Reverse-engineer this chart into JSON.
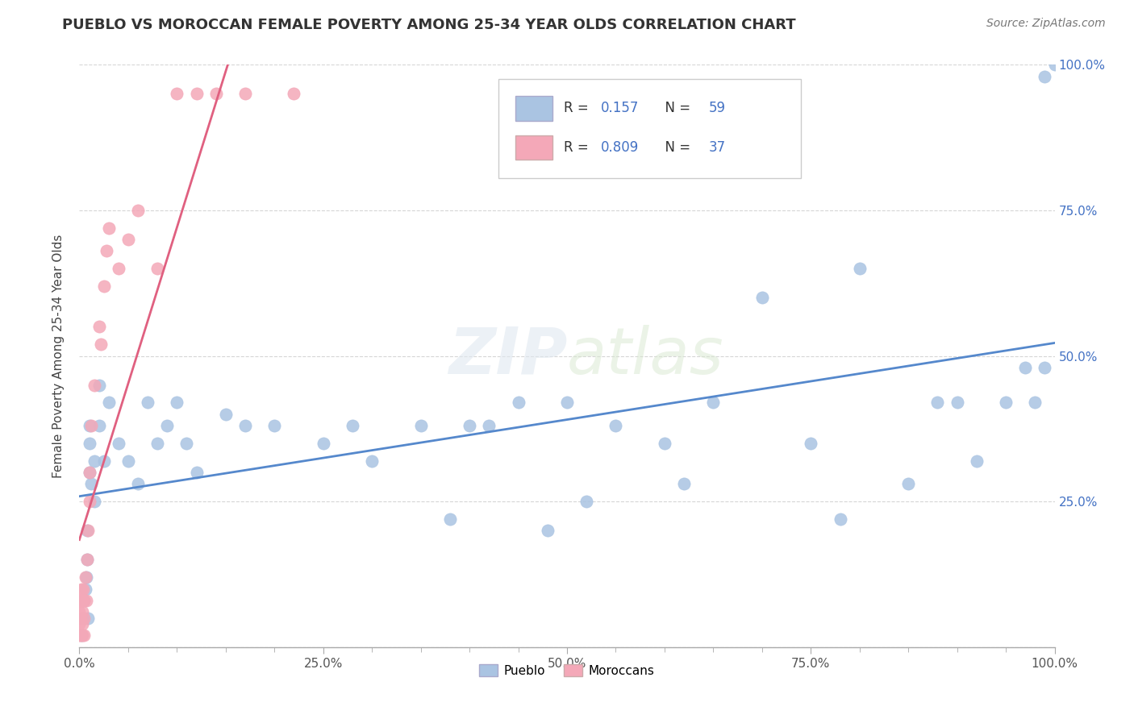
{
  "title": "PUEBLO VS MOROCCAN FEMALE POVERTY AMONG 25-34 YEAR OLDS CORRELATION CHART",
  "source": "Source: ZipAtlas.com",
  "ylabel": "Female Poverty Among 25-34 Year Olds",
  "xlim": [
    0,
    1
  ],
  "ylim": [
    0,
    1
  ],
  "xtick_labels": [
    "0.0%",
    "",
    "",
    "",
    "",
    "25.0%",
    "",
    "",
    "",
    "",
    "50.0%",
    "",
    "",
    "",
    "",
    "75.0%",
    "",
    "",
    "",
    "",
    "100.0%"
  ],
  "xtick_vals": [
    0.0,
    0.05,
    0.1,
    0.15,
    0.2,
    0.25,
    0.3,
    0.35,
    0.4,
    0.45,
    0.5,
    0.55,
    0.6,
    0.65,
    0.7,
    0.75,
    0.8,
    0.85,
    0.9,
    0.95,
    1.0
  ],
  "ytick_vals": [
    0.0,
    0.25,
    0.5,
    0.75,
    1.0
  ],
  "ytick_labels_right": [
    "",
    "25.0%",
    "50.0%",
    "75.0%",
    "100.0%"
  ],
  "pueblo_color": "#aac4e2",
  "moroccan_color": "#f4a8b8",
  "pueblo_line_color": "#5588cc",
  "moroccan_line_color": "#e06080",
  "legend_R_pueblo": "0.157",
  "legend_N_pueblo": "59",
  "legend_R_moroccan": "0.809",
  "legend_N_moroccan": "37",
  "legend_text_color": "#4472c4",
  "watermark": "ZIPatlas",
  "background_color": "#ffffff",
  "pueblo_x": [
    0.002,
    0.003,
    0.005,
    0.006,
    0.007,
    0.008,
    0.008,
    0.009,
    0.01,
    0.01,
    0.01,
    0.012,
    0.015,
    0.015,
    0.02,
    0.02,
    0.025,
    0.03,
    0.04,
    0.05,
    0.06,
    0.07,
    0.08,
    0.09,
    0.1,
    0.11,
    0.12,
    0.15,
    0.17,
    0.2,
    0.25,
    0.28,
    0.3,
    0.35,
    0.38,
    0.4,
    0.42,
    0.45,
    0.48,
    0.5,
    0.52,
    0.55,
    0.6,
    0.62,
    0.65,
    0.7,
    0.75,
    0.78,
    0.8,
    0.85,
    0.88,
    0.9,
    0.92,
    0.95,
    0.97,
    0.98,
    0.99,
    0.99,
    1.0
  ],
  "pueblo_y": [
    0.02,
    0.05,
    0.08,
    0.1,
    0.12,
    0.15,
    0.2,
    0.05,
    0.3,
    0.38,
    0.35,
    0.28,
    0.32,
    0.25,
    0.45,
    0.38,
    0.32,
    0.42,
    0.35,
    0.32,
    0.28,
    0.42,
    0.35,
    0.38,
    0.42,
    0.35,
    0.3,
    0.4,
    0.38,
    0.38,
    0.35,
    0.38,
    0.32,
    0.38,
    0.22,
    0.38,
    0.38,
    0.42,
    0.2,
    0.42,
    0.25,
    0.38,
    0.35,
    0.28,
    0.42,
    0.6,
    0.35,
    0.22,
    0.65,
    0.28,
    0.42,
    0.42,
    0.32,
    0.42,
    0.48,
    0.42,
    0.48,
    0.98,
    1.0
  ],
  "moroccan_x": [
    0.0,
    0.0,
    0.0,
    0.0,
    0.001,
    0.001,
    0.002,
    0.002,
    0.003,
    0.003,
    0.003,
    0.004,
    0.005,
    0.005,
    0.005,
    0.006,
    0.007,
    0.008,
    0.009,
    0.01,
    0.01,
    0.012,
    0.015,
    0.02,
    0.022,
    0.025,
    0.028,
    0.03,
    0.04,
    0.05,
    0.06,
    0.08,
    0.1,
    0.12,
    0.14,
    0.17,
    0.22
  ],
  "moroccan_y": [
    0.02,
    0.04,
    0.06,
    0.08,
    0.02,
    0.05,
    0.08,
    0.1,
    0.02,
    0.04,
    0.06,
    0.1,
    0.02,
    0.05,
    0.08,
    0.12,
    0.08,
    0.15,
    0.2,
    0.25,
    0.3,
    0.38,
    0.45,
    0.55,
    0.52,
    0.62,
    0.68,
    0.72,
    0.65,
    0.7,
    0.75,
    0.65,
    0.95,
    0.95,
    0.95,
    0.95,
    0.95
  ]
}
